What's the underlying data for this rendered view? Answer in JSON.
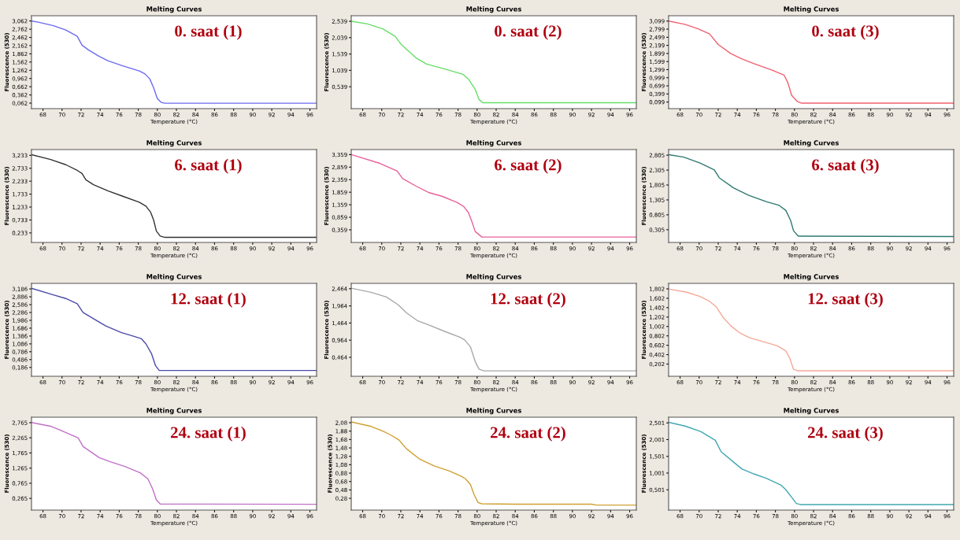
{
  "chart_data": [
    {
      "type": "line",
      "title": "Melting Curves",
      "xlabel": "Temperature (°C)",
      "ylabel": "Fluorescence (530)",
      "annotations": [
        "0. saat (1)"
      ],
      "xlim": [
        66.8,
        96.7
      ],
      "xticks": [
        68,
        70,
        72,
        74,
        76,
        78,
        80,
        82,
        84,
        86,
        88,
        90,
        92,
        94,
        96
      ],
      "ylim": [
        -0.138,
        3.253
      ],
      "yticks": [
        {
          "value": 3.062,
          "label": "3,062"
        },
        {
          "value": 2.762,
          "label": "2,762"
        },
        {
          "value": 2.462,
          "label": "2,462"
        },
        {
          "value": 2.162,
          "label": "2,162"
        },
        {
          "value": 1.862,
          "label": "1,862"
        },
        {
          "value": 1.562,
          "label": "1,562"
        },
        {
          "value": 1.262,
          "label": "1,262"
        },
        {
          "value": 0.962,
          "label": "0,962"
        },
        {
          "value": 0.662,
          "label": "0,662"
        },
        {
          "value": 0.362,
          "label": "0,362"
        },
        {
          "value": 0.062,
          "label": "0,062"
        }
      ],
      "series": [
        {
          "color": "#6a6af0",
          "x": [
            66.8,
            67.5,
            69.1,
            70.4,
            71.6,
            72.1,
            72.8,
            73.9,
            74.8,
            76.3,
            78.1,
            78.7,
            79.2,
            79.6,
            80.0,
            80.4,
            80.8,
            96.7
          ],
          "values": [
            3.06,
            3.02,
            2.89,
            2.73,
            2.5,
            2.18,
            2.0,
            1.77,
            1.61,
            1.43,
            1.24,
            1.13,
            0.95,
            0.63,
            0.23,
            0.09,
            0.06,
            0.06
          ]
        }
      ]
    },
    {
      "type": "line",
      "title": "Melting Curves",
      "xlabel": "Temperature (°C)",
      "ylabel": "Fluorescence (530)",
      "annotations": [
        "0. saat (2)"
      ],
      "xlim": [
        66.8,
        96.7
      ],
      "xticks": [
        68,
        70,
        72,
        74,
        76,
        78,
        80,
        82,
        84,
        86,
        88,
        90,
        92,
        94,
        96
      ],
      "ylim": [
        -0.13,
        2.708
      ],
      "yticks": [
        {
          "value": 2.539,
          "label": "2,539"
        },
        {
          "value": 2.039,
          "label": "2,039"
        },
        {
          "value": 1.539,
          "label": "1,539"
        },
        {
          "value": 1.039,
          "label": "1,039"
        },
        {
          "value": 0.539,
          "label": "0,539"
        }
      ],
      "series": [
        {
          "color": "#66dd66",
          "x": [
            66.8,
            68.5,
            70.1,
            71.4,
            72.1,
            73.6,
            74.7,
            76.6,
            78.5,
            79.1,
            79.8,
            80.2,
            80.6,
            96.7
          ],
          "values": [
            2.54,
            2.46,
            2.31,
            2.08,
            1.81,
            1.42,
            1.23,
            1.08,
            0.92,
            0.77,
            0.46,
            0.15,
            0.05,
            0.05
          ]
        }
      ]
    },
    {
      "type": "line",
      "title": "Melting Curves",
      "xlabel": "Temperature (°C)",
      "ylabel": "Fluorescence (530)",
      "annotations": [
        "0. saat (3)"
      ],
      "xlim": [
        66.8,
        96.7
      ],
      "xticks": [
        68,
        70,
        72,
        74,
        76,
        78,
        80,
        82,
        84,
        86,
        88,
        90,
        92,
        94,
        96
      ],
      "ylim": [
        -0.145,
        3.296
      ],
      "yticks": [
        {
          "value": 3.099,
          "label": "3,099"
        },
        {
          "value": 2.799,
          "label": "2,799"
        },
        {
          "value": 2.499,
          "label": "2,499"
        },
        {
          "value": 2.199,
          "label": "2,199"
        },
        {
          "value": 1.899,
          "label": "1,899"
        },
        {
          "value": 1.599,
          "label": "1,599"
        },
        {
          "value": 1.299,
          "label": "1,299"
        },
        {
          "value": 0.999,
          "label": "0,999"
        },
        {
          "value": 0.699,
          "label": "0,699"
        },
        {
          "value": 0.399,
          "label": "0,399"
        },
        {
          "value": 0.099,
          "label": "0,099"
        }
      ],
      "series": [
        {
          "color": "#f06070",
          "x": [
            66.8,
            68.5,
            69.9,
            71.1,
            72.0,
            73.3,
            74.4,
            75.7,
            77.6,
            78.9,
            79.3,
            79.7,
            80.3,
            80.7,
            96.7
          ],
          "values": [
            3.1,
            2.98,
            2.81,
            2.62,
            2.23,
            1.9,
            1.71,
            1.53,
            1.29,
            1.1,
            0.82,
            0.35,
            0.12,
            0.06,
            0.06
          ]
        }
      ]
    },
    {
      "type": "line",
      "title": "Melting Curves",
      "xlabel": "Temperature (°C)",
      "ylabel": "Fluorescence (530)",
      "annotations": [
        "6. saat (1)"
      ],
      "xlim": [
        66.8,
        96.7
      ],
      "xticks": [
        68,
        70,
        72,
        74,
        76,
        78,
        80,
        82,
        84,
        86,
        88,
        90,
        92,
        94,
        96
      ],
      "ylim": [
        -0.136,
        3.456
      ],
      "yticks": [
        {
          "value": 3.233,
          "label": "3,233"
        },
        {
          "value": 2.733,
          "label": "2,733"
        },
        {
          "value": 2.233,
          "label": "2,233"
        },
        {
          "value": 1.733,
          "label": "1,733"
        },
        {
          "value": 1.233,
          "label": "1,233"
        },
        {
          "value": 0.733,
          "label": "0,733"
        },
        {
          "value": 0.233,
          "label": "0,233"
        }
      ],
      "series": [
        {
          "color": "#333333",
          "x": [
            66.8,
            68.8,
            70.4,
            71.6,
            72.1,
            72.5,
            73.3,
            74.8,
            76.3,
            78.1,
            78.8,
            79.3,
            79.6,
            79.9,
            80.3,
            80.8,
            96.7
          ],
          "values": [
            3.26,
            3.07,
            2.87,
            2.65,
            2.53,
            2.29,
            2.1,
            1.86,
            1.66,
            1.42,
            1.27,
            1.03,
            0.74,
            0.3,
            0.11,
            0.06,
            0.06
          ]
        }
      ]
    },
    {
      "type": "line",
      "title": "Melting Curves",
      "xlabel": "Temperature (°C)",
      "ylabel": "Fluorescence (530)",
      "annotations": [
        "6. saat (2)"
      ],
      "xlim": [
        66.8,
        96.7
      ],
      "xticks": [
        68,
        70,
        72,
        74,
        76,
        78,
        80,
        82,
        84,
        86,
        88,
        90,
        92,
        94,
        96
      ],
      "ylim": [
        -0.145,
        3.56
      ],
      "yticks": [
        {
          "value": 3.359,
          "label": "3,359"
        },
        {
          "value": 2.859,
          "label": "2,859"
        },
        {
          "value": 2.359,
          "label": "2,359"
        },
        {
          "value": 1.859,
          "label": "1,859"
        },
        {
          "value": 1.359,
          "label": "1,359"
        },
        {
          "value": 0.859,
          "label": "0,859"
        },
        {
          "value": 0.359,
          "label": "0,359"
        }
      ],
      "series": [
        {
          "color": "#e8609a",
          "x": [
            66.8,
            69.8,
            71.6,
            72.2,
            73.6,
            74.9,
            76.3,
            77.9,
            78.6,
            79.1,
            79.5,
            79.8,
            80.5,
            96.7
          ],
          "values": [
            3.36,
            3.01,
            2.71,
            2.4,
            2.1,
            1.85,
            1.7,
            1.45,
            1.29,
            1.04,
            0.64,
            0.29,
            0.07,
            0.07
          ]
        }
      ]
    },
    {
      "type": "line",
      "title": "Melting Curves",
      "xlabel": "Temperature (°C)",
      "ylabel": "Fluorescence (530)",
      "annotations": [
        "6. saat (3)"
      ],
      "xlim": [
        66.8,
        96.7
      ],
      "xticks": [
        68,
        70,
        72,
        74,
        76,
        78,
        80,
        82,
        84,
        86,
        88,
        90,
        92,
        94,
        96
      ],
      "ylim": [
        -0.122,
        2.993
      ],
      "yticks": [
        {
          "value": 2.805,
          "label": "2,805"
        },
        {
          "value": 2.305,
          "label": "2,305"
        },
        {
          "value": 1.805,
          "label": "1,805"
        },
        {
          "value": 1.305,
          "label": "1,305"
        },
        {
          "value": 0.805,
          "label": "0,805"
        },
        {
          "value": 0.305,
          "label": "0,305"
        }
      ],
      "series": [
        {
          "color": "#2e7a70",
          "x": [
            66.8,
            68.4,
            70.1,
            71.6,
            72.1,
            73.6,
            75.2,
            77.1,
            78.4,
            79.1,
            79.6,
            79.9,
            80.4,
            96.7
          ],
          "values": [
            2.82,
            2.74,
            2.54,
            2.31,
            2.05,
            1.71,
            1.46,
            1.24,
            1.12,
            0.95,
            0.61,
            0.27,
            0.09,
            0.075
          ]
        }
      ]
    },
    {
      "type": "line",
      "title": "Melting Curves",
      "xlabel": "Temperature (°C)",
      "ylabel": "Fluorescence (530)",
      "annotations": [
        "12. saat (1)"
      ],
      "xlim": [
        66.8,
        96.7
      ],
      "xticks": [
        68,
        70,
        72,
        74,
        76,
        78,
        80,
        82,
        84,
        86,
        88,
        90,
        92,
        94,
        96
      ],
      "ylim": [
        -0.152,
        3.398
      ],
      "yticks": [
        {
          "value": 3.186,
          "label": "3,186"
        },
        {
          "value": 2.886,
          "label": "2,886"
        },
        {
          "value": 2.586,
          "label": "2,586"
        },
        {
          "value": 2.286,
          "label": "2,286"
        },
        {
          "value": 1.986,
          "label": "1,986"
        },
        {
          "value": 1.686,
          "label": "1,686"
        },
        {
          "value": 1.386,
          "label": "1,386"
        },
        {
          "value": 1.086,
          "label": "1,086"
        },
        {
          "value": 0.786,
          "label": "0,786"
        },
        {
          "value": 0.486,
          "label": "0,486"
        },
        {
          "value": 0.186,
          "label": "0,186"
        }
      ],
      "series": [
        {
          "color": "#4a4aa8",
          "x": [
            66.8,
            69.1,
            70.4,
            71.6,
            72.2,
            73.3,
            74.6,
            76.2,
            77.5,
            78.3,
            78.8,
            79.4,
            79.8,
            80.2,
            96.7
          ],
          "values": [
            3.21,
            2.96,
            2.82,
            2.62,
            2.29,
            2.05,
            1.77,
            1.52,
            1.38,
            1.29,
            1.09,
            0.7,
            0.26,
            0.07,
            0.07
          ]
        }
      ]
    },
    {
      "type": "line",
      "title": "Melting Curves",
      "xlabel": "Temperature (°C)",
      "ylabel": "Fluorescence (530)",
      "annotations": [
        "12. saat (2)"
      ],
      "xlim": [
        66.8,
        96.7
      ],
      "xticks": [
        68,
        70,
        72,
        74,
        76,
        78,
        80,
        82,
        84,
        86,
        88,
        90,
        92,
        94,
        96
      ],
      "ylim": [
        -0.089,
        2.62
      ],
      "yticks": [
        {
          "value": 2.464,
          "label": "2,464"
        },
        {
          "value": 1.964,
          "label": "1,964"
        },
        {
          "value": 1.464,
          "label": "1,464"
        },
        {
          "value": 0.964,
          "label": "0,964"
        },
        {
          "value": 0.464,
          "label": "0,464"
        }
      ],
      "series": [
        {
          "color": "#a8a8a8",
          "x": [
            66.8,
            68.9,
            70.5,
            71.7,
            72.6,
            73.7,
            75.0,
            76.6,
            78.2,
            78.7,
            79.3,
            79.8,
            80.2,
            80.7,
            96.7
          ],
          "values": [
            2.48,
            2.36,
            2.22,
            2.0,
            1.76,
            1.54,
            1.4,
            1.22,
            1.05,
            0.97,
            0.77,
            0.34,
            0.12,
            0.07,
            0.07
          ]
        }
      ]
    },
    {
      "type": "line",
      "title": "Melting Curves",
      "xlabel": "Temperature (°C)",
      "ylabel": "Fluorescence (530)",
      "annotations": [
        "12. saat (3)"
      ],
      "xlim": [
        66.8,
        96.7
      ],
      "xticks": [
        68,
        70,
        72,
        74,
        76,
        78,
        80,
        82,
        84,
        86,
        88,
        90,
        92,
        94,
        96
      ],
      "ylim": [
        -0.058,
        1.919
      ],
      "yticks": [
        {
          "value": 1.802,
          "label": "1,802"
        },
        {
          "value": 1.602,
          "label": "1,602"
        },
        {
          "value": 1.402,
          "label": "1,402"
        },
        {
          "value": 1.202,
          "label": "1,202"
        },
        {
          "value": 1.002,
          "label": "1,002"
        },
        {
          "value": 0.802,
          "label": "0,802"
        },
        {
          "value": 0.602,
          "label": "0,602"
        },
        {
          "value": 0.402,
          "label": "0,402"
        },
        {
          "value": 0.202,
          "label": "0,202"
        }
      ],
      "series": [
        {
          "color": "#f4a898",
          "x": [
            66.8,
            68.7,
            70.1,
            71.0,
            71.8,
            72.5,
            73.3,
            74.3,
            75.3,
            76.9,
            78.2,
            79.1,
            79.5,
            79.9,
            80.3,
            96.7
          ],
          "values": [
            1.8,
            1.73,
            1.64,
            1.55,
            1.42,
            1.2,
            1.02,
            0.86,
            0.76,
            0.67,
            0.59,
            0.48,
            0.33,
            0.09,
            0.06,
            0.06
          ]
        }
      ]
    },
    {
      "type": "line",
      "title": "Melting Curves",
      "xlabel": "Temperature (°C)",
      "ylabel": "Fluorescence (530)",
      "annotations": [
        "24. saat (1)"
      ],
      "xlim": [
        66.8,
        96.7
      ],
      "xticks": [
        68,
        70,
        72,
        74,
        76,
        78,
        80,
        82,
        84,
        86,
        88,
        90,
        92,
        94,
        96
      ],
      "ylim": [
        -0.122,
        2.946
      ],
      "yticks": [
        {
          "value": 2.765,
          "label": "2,765"
        },
        {
          "value": 2.265,
          "label": "2,265"
        },
        {
          "value": 1.765,
          "label": "1,765"
        },
        {
          "value": 1.265,
          "label": "1,265"
        },
        {
          "value": 0.765,
          "label": "0,765"
        },
        {
          "value": 0.265,
          "label": "0,265"
        }
      ],
      "series": [
        {
          "color": "#c070c8",
          "x": [
            66.8,
            68.9,
            69.9,
            71.7,
            72.2,
            73.9,
            75.0,
            76.6,
            78.2,
            79.0,
            79.5,
            79.9,
            80.3,
            96.7
          ],
          "values": [
            2.77,
            2.64,
            2.51,
            2.26,
            1.98,
            1.61,
            1.48,
            1.32,
            1.11,
            0.91,
            0.58,
            0.21,
            0.08,
            0.07
          ]
        }
      ]
    },
    {
      "type": "line",
      "title": "Melting Curves",
      "xlabel": "Temperature (°C)",
      "ylabel": "Fluorescence (530)",
      "annotations": [
        "24. saat (2)"
      ],
      "xlim": [
        66.8,
        96.7
      ],
      "xticks": [
        68,
        70,
        72,
        74,
        76,
        78,
        80,
        82,
        84,
        86,
        88,
        90,
        92,
        94,
        96
      ],
      "ylim": [
        0.0,
        2.211
      ],
      "yticks": [
        {
          "value": 2.08,
          "label": "2,08"
        },
        {
          "value": 1.88,
          "label": "1,88"
        },
        {
          "value": 1.68,
          "label": "1,68"
        },
        {
          "value": 1.48,
          "label": "1,48"
        },
        {
          "value": 1.28,
          "label": "1,28"
        },
        {
          "value": 1.08,
          "label": "1,08"
        },
        {
          "value": 0.88,
          "label": "0,88"
        },
        {
          "value": 0.68,
          "label": "0,68"
        },
        {
          "value": 0.48,
          "label": "0,48"
        },
        {
          "value": 0.28,
          "label": "0,28"
        }
      ],
      "series": [
        {
          "color": "#d0a030",
          "x": [
            66.8,
            68.9,
            70.2,
            71.0,
            71.8,
            72.6,
            74.0,
            75.5,
            77.1,
            78.4,
            78.8,
            79.3,
            79.7,
            80.1,
            80.5,
            84.0,
            92.0,
            92.5,
            96.7
          ],
          "values": [
            2.1,
            1.99,
            1.87,
            1.78,
            1.67,
            1.46,
            1.21,
            1.05,
            0.93,
            0.8,
            0.74,
            0.61,
            0.36,
            0.18,
            0.15,
            0.14,
            0.14,
            0.12,
            0.12
          ]
        }
      ]
    },
    {
      "type": "line",
      "title": "Melting Curves",
      "xlabel": "Temperature (°C)",
      "ylabel": "Fluorescence (530)",
      "annotations": [
        "24. saat (3)"
      ],
      "xlim": [
        66.8,
        96.7
      ],
      "xticks": [
        68,
        70,
        72,
        74,
        76,
        78,
        80,
        82,
        84,
        86,
        88,
        90,
        92,
        94,
        96
      ],
      "ylim": [
        -0.106,
        2.671
      ],
      "yticks": [
        {
          "value": 2.501,
          "label": "2,501"
        },
        {
          "value": 2.001,
          "label": "2,001"
        },
        {
          "value": 1.501,
          "label": "1,501"
        },
        {
          "value": 1.001,
          "label": "1,001"
        },
        {
          "value": 0.501,
          "label": "0,501"
        }
      ],
      "series": [
        {
          "color": "#40a8b0",
          "x": [
            66.8,
            68.6,
            70.2,
            71.7,
            72.3,
            73.4,
            74.5,
            75.8,
            77.1,
            78.6,
            79.1,
            79.7,
            80.2,
            80.6,
            96.7
          ],
          "values": [
            2.52,
            2.4,
            2.24,
            1.98,
            1.64,
            1.38,
            1.12,
            0.97,
            0.84,
            0.64,
            0.5,
            0.28,
            0.09,
            0.06,
            0.06
          ]
        }
      ]
    }
  ]
}
